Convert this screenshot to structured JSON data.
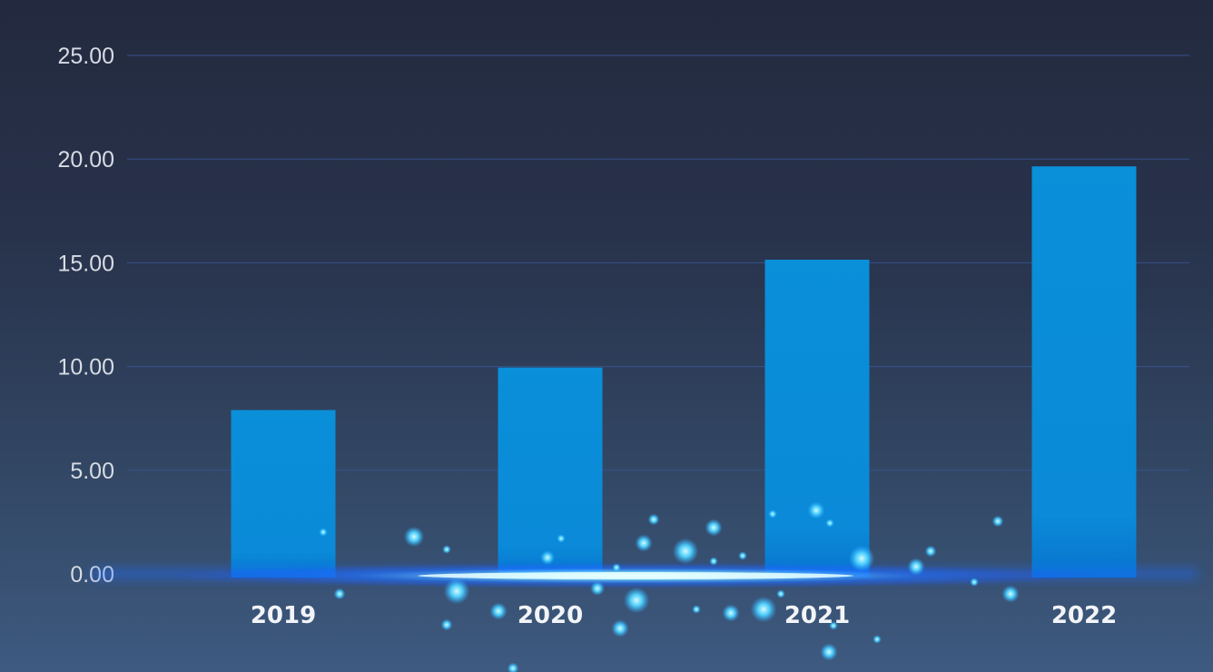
{
  "colors": {
    "bar": "#0a8fd9",
    "bar_bottom": "#0a78d0",
    "grid": "#3a5590",
    "glow": "#3da9ff",
    "particle": "#4fd3ff"
  },
  "chart_data": {
    "type": "bar",
    "title": "",
    "xlabel": "",
    "ylabel": "",
    "categories": [
      "2019",
      "2020",
      "2021",
      "2022"
    ],
    "values": [
      7.9,
      9.95,
      15.15,
      19.65
    ],
    "ylim": [
      0,
      25
    ],
    "yticks": [
      "0.00",
      "5.00",
      "10.00",
      "15.00",
      "20.00",
      "25.00"
    ],
    "grid": true,
    "legend": "none"
  }
}
